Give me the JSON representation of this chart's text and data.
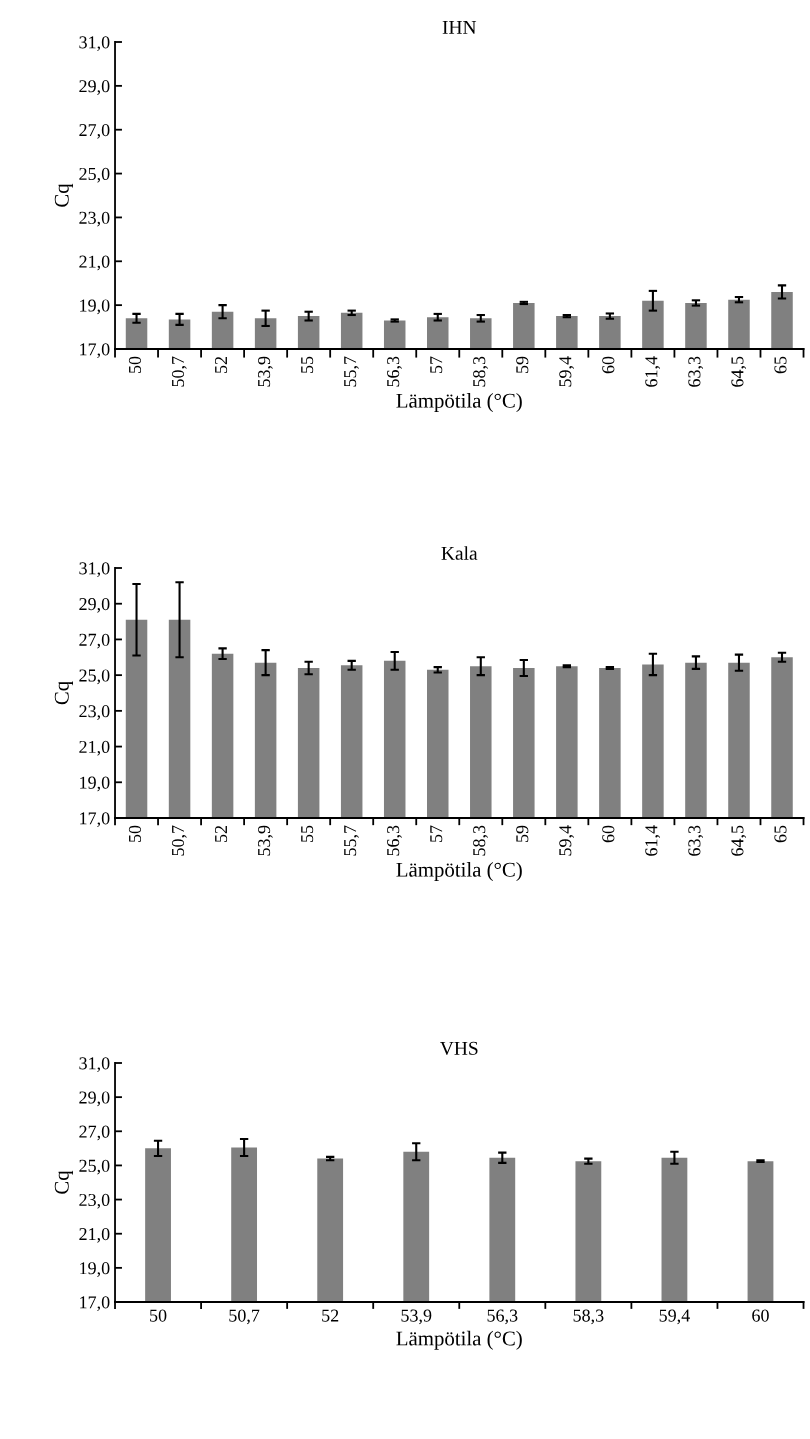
{
  "chart_data": [
    {
      "type": "bar",
      "title": "IHN",
      "xlabel": "Lämpötila (°C)",
      "ylabel": "Cq",
      "categories": [
        "50",
        "50,7",
        "52",
        "53,9",
        "55",
        "55,7",
        "56,3",
        "57",
        "58,3",
        "59",
        "59,4",
        "60",
        "61,4",
        "63,3",
        "64,5",
        "65"
      ],
      "values": [
        18.4,
        18.35,
        18.7,
        18.4,
        18.5,
        18.65,
        18.3,
        18.45,
        18.4,
        19.1,
        18.5,
        18.5,
        19.2,
        19.1,
        19.25,
        19.6
      ],
      "errors": [
        0.2,
        0.25,
        0.3,
        0.35,
        0.2,
        0.1,
        0.05,
        0.15,
        0.15,
        0.05,
        0.05,
        0.12,
        0.45,
        0.12,
        0.12,
        0.3
      ],
      "color": "#808080",
      "ylim": [
        17,
        31
      ],
      "yticks": [
        {
          "value": 17,
          "label": "17,0"
        },
        {
          "value": 19,
          "label": "19,0"
        },
        {
          "value": 21,
          "label": "21,0"
        },
        {
          "value": 23,
          "label": "23,0"
        },
        {
          "value": 25,
          "label": "25,0"
        },
        {
          "value": 27,
          "label": "27,0"
        },
        {
          "value": 29,
          "label": "29,0"
        },
        {
          "value": 31,
          "label": "31,0"
        }
      ],
      "grid": false
    },
    {
      "type": "bar",
      "title": "Kala",
      "xlabel": "Lämpötila (°C)",
      "ylabel": "Cq",
      "categories": [
        "50",
        "50,7",
        "52",
        "53,9",
        "55",
        "55,7",
        "56,3",
        "57",
        "58,3",
        "59",
        "59,4",
        "60",
        "61,4",
        "63,3",
        "64,5",
        "65"
      ],
      "values": [
        28.1,
        28.1,
        26.2,
        25.7,
        25.4,
        25.55,
        25.8,
        25.3,
        25.5,
        25.4,
        25.5,
        25.4,
        25.6,
        25.7,
        25.7,
        26.0
      ],
      "errors": [
        2.0,
        2.1,
        0.3,
        0.7,
        0.35,
        0.25,
        0.5,
        0.15,
        0.5,
        0.45,
        0.05,
        0.05,
        0.6,
        0.35,
        0.45,
        0.25
      ],
      "color": "#808080",
      "ylim": [
        17,
        31
      ],
      "yticks": [
        {
          "value": 17,
          "label": "17,0"
        },
        {
          "value": 19,
          "label": "19,0"
        },
        {
          "value": 21,
          "label": "21,0"
        },
        {
          "value": 23,
          "label": "23,0"
        },
        {
          "value": 25,
          "label": "25,0"
        },
        {
          "value": 27,
          "label": "27,0"
        },
        {
          "value": 29,
          "label": "29,0"
        },
        {
          "value": 31,
          "label": "31,0"
        }
      ],
      "grid": false
    },
    {
      "type": "bar",
      "title": "VHS",
      "xlabel": "Lämpötila (°C)",
      "ylabel": "Cq",
      "categories": [
        "50",
        "50,7",
        "52",
        "53,9",
        "56,3",
        "58,3",
        "59,4",
        "60"
      ],
      "values": [
        26.0,
        26.05,
        25.4,
        25.8,
        25.45,
        25.25,
        25.45,
        25.25
      ],
      "errors": [
        0.45,
        0.5,
        0.1,
        0.5,
        0.3,
        0.15,
        0.35,
        0.05
      ],
      "color": "#808080",
      "ylim": [
        17,
        31
      ],
      "yticks": [
        {
          "value": 17,
          "label": "17,0"
        },
        {
          "value": 19,
          "label": "19,0"
        },
        {
          "value": 21,
          "label": "21,0"
        },
        {
          "value": 23,
          "label": "23,0"
        },
        {
          "value": 25,
          "label": "25,0"
        },
        {
          "value": 27,
          "label": "27,0"
        },
        {
          "value": 29,
          "label": "29,0"
        },
        {
          "value": 31,
          "label": "31,0"
        }
      ],
      "grid": false
    }
  ]
}
